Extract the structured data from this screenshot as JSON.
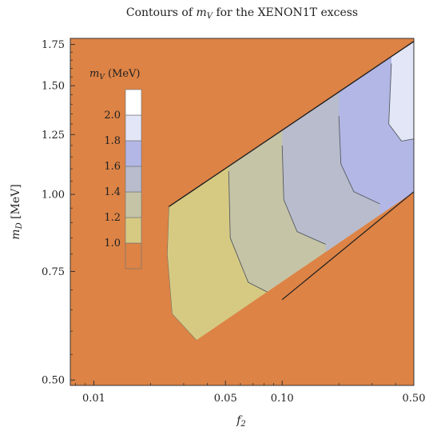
{
  "chart_data": {
    "type": "contour",
    "title": "Contours of m_V for the XENON1T excess",
    "title_parts": {
      "prefix": "Contours of ",
      "var": "m",
      "sub": "V",
      "suffix": " for the XENON1T excess"
    },
    "xlabel": "f",
    "xlabel_sub": "2",
    "ylabel": "m",
    "ylabel_sub": "D",
    "ylabel_unit": " [MeV]",
    "x_scale": "log",
    "y_scale": "log",
    "xlim": [
      0.0075,
      0.5
    ],
    "ylim": [
      0.49,
      1.79
    ],
    "x_ticks": [
      {
        "value": 0.01,
        "label": "0.01"
      },
      {
        "value": 0.05,
        "label": "0.05"
      },
      {
        "value": 0.1,
        "label": "0.10"
      },
      {
        "value": 0.5,
        "label": "0.50"
      }
    ],
    "y_ticks": [
      {
        "value": 0.5,
        "label": "0.50"
      },
      {
        "value": 0.75,
        "label": "0.75"
      },
      {
        "value": 1.0,
        "label": "1.00"
      },
      {
        "value": 1.25,
        "label": "1.25"
      },
      {
        "value": 1.5,
        "label": "1.50"
      },
      {
        "value": 1.75,
        "label": "1.75"
      }
    ],
    "legend": {
      "title_var": "m",
      "title_sub": "V",
      "title_unit": " (MeV)",
      "placement": "top-left",
      "levels": [
        {
          "label": "",
          "color": "#dd8345"
        },
        {
          "label": "1.0",
          "color": "#d6ca83"
        },
        {
          "label": "1.2",
          "color": "#c6c4a6"
        },
        {
          "label": "1.4",
          "color": "#b8bccc"
        },
        {
          "label": "1.6",
          "color": "#b3b7e6"
        },
        {
          "label": "1.8",
          "color": "#e3e6f6"
        },
        {
          "label": "2.0",
          "color": "#ffffff"
        }
      ]
    },
    "background_color": "#dd8345",
    "region": {
      "upper_boundary": [
        [
          0.025,
          0.955
        ],
        [
          0.5,
          1.77
        ]
      ],
      "lower_boundary": [
        [
          0.035,
          0.58
        ],
        [
          0.5,
          1.01
        ]
      ]
    },
    "contours": [
      {
        "level": 1.0,
        "color": "#d6ca83",
        "left_edge": [
          [
            0.025,
            0.955
          ],
          [
            0.0245,
            0.8
          ],
          [
            0.026,
            0.64
          ],
          [
            0.035,
            0.58
          ]
        ]
      },
      {
        "level": 1.2,
        "color": "#c6c4a6",
        "left_edge": [
          [
            0.052,
            1.09
          ],
          [
            0.053,
            0.85
          ],
          [
            0.066,
            0.72
          ],
          [
            0.1,
            0.675
          ]
        ]
      },
      {
        "level": 1.4,
        "color": "#b8bccc",
        "left_edge": [
          [
            0.1,
            1.2
          ],
          [
            0.102,
            0.98
          ],
          [
            0.12,
            0.87
          ],
          [
            0.17,
            0.83
          ]
        ]
      },
      {
        "level": 1.6,
        "color": "#b3b7e6",
        "left_edge": [
          [
            0.2,
            1.34
          ],
          [
            0.205,
            1.12
          ],
          [
            0.24,
            1.01
          ],
          [
            0.33,
            0.965
          ]
        ]
      },
      {
        "level": 1.8,
        "color": "#e3e6f6",
        "left_edge": [
          [
            0.38,
            1.63
          ],
          [
            0.368,
            1.3
          ],
          [
            0.43,
            1.22
          ],
          [
            0.5,
            1.23
          ]
        ]
      }
    ]
  }
}
